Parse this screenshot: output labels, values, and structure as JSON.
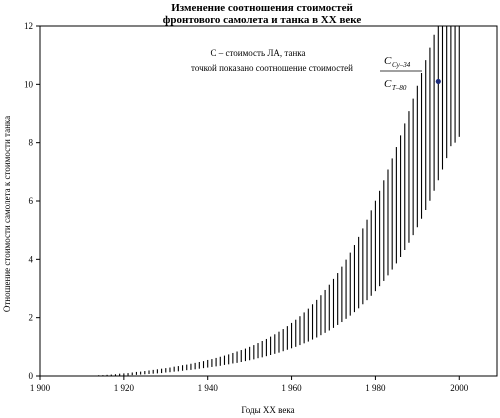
{
  "chart_data": {
    "type": "range-bar",
    "title_line1": "Изменение соотношения стоимостей",
    "title_line2": "фронтового самолета и танка в XX веке",
    "xlabel": "Годы XX века",
    "ylabel": "Отношение стоимости самолета к стоимости танка",
    "xlim": [
      1900,
      2009
    ],
    "ylim": [
      0,
      12
    ],
    "x_ticks": [
      "1 900",
      "1 920",
      "1 940",
      "1 960",
      "1 980",
      "2000"
    ],
    "x_tick_values": [
      1900,
      1920,
      1940,
      1960,
      1980,
      2000
    ],
    "y_ticks": [
      "0",
      "2",
      "4",
      "6",
      "8",
      "10",
      "12"
    ],
    "y_tick_values": [
      0,
      2,
      4,
      6,
      8,
      10,
      12
    ],
    "grid": false,
    "series": [
      {
        "band": {
          "x_start": 1914,
          "x_end": 2000,
          "step": 1,
          "upper_values": [
            0.02,
            0.03,
            0.04,
            0.05,
            0.06,
            0.08,
            0.09,
            0.1,
            0.12,
            0.14,
            0.15,
            0.17,
            0.19,
            0.21,
            0.23,
            0.25,
            0.27,
            0.29,
            0.32,
            0.34,
            0.37,
            0.39,
            0.42,
            0.45,
            0.48,
            0.51,
            0.55,
            0.58,
            0.62,
            0.66,
            0.7,
            0.74,
            0.79,
            0.84,
            0.89,
            0.94,
            1.0,
            1.06,
            1.13,
            1.2,
            1.27,
            1.35,
            1.43,
            1.52,
            1.61,
            1.71,
            1.82,
            1.93,
            2.05,
            2.18,
            2.31,
            2.46,
            2.61,
            2.77,
            2.95,
            3.13,
            3.33,
            3.53,
            3.75,
            3.99,
            4.23,
            4.49,
            4.77,
            5.06,
            5.36,
            5.68,
            6.01,
            6.35,
            6.71,
            7.08,
            7.46,
            7.85,
            8.25,
            8.66,
            9.08,
            9.51,
            9.95,
            10.39,
            10.83,
            11.26,
            11.7,
            12.0,
            12.0,
            12.0,
            12.0,
            12.0,
            12.0
          ],
          "lower_values": [
            0.0,
            0.0,
            0.0,
            0.0,
            0.0,
            0.01,
            0.01,
            0.02,
            0.03,
            0.04,
            0.05,
            0.06,
            0.07,
            0.08,
            0.09,
            0.1,
            0.12,
            0.13,
            0.15,
            0.16,
            0.18,
            0.2,
            0.21,
            0.23,
            0.25,
            0.27,
            0.29,
            0.31,
            0.33,
            0.35,
            0.38,
            0.4,
            0.43,
            0.45,
            0.48,
            0.51,
            0.54,
            0.57,
            0.61,
            0.64,
            0.68,
            0.72,
            0.76,
            0.8,
            0.85,
            0.9,
            0.95,
            1.0,
            1.06,
            1.12,
            1.18,
            1.25,
            1.32,
            1.4,
            1.48,
            1.56,
            1.65,
            1.75,
            1.85,
            1.96,
            2.07,
            2.19,
            2.32,
            2.46,
            2.6,
            2.75,
            2.91,
            3.08,
            3.26,
            3.45,
            3.65,
            3.86,
            4.08,
            4.32,
            4.57,
            4.83,
            5.1,
            5.39,
            5.69,
            6.01,
            6.35,
            6.71,
            7.08,
            7.47,
            7.88,
            8.0,
            8.2
          ]
        }
      }
    ],
    "points": [
      {
        "x": 1995,
        "y": 10.1,
        "color": "#1a2a7a"
      }
    ],
    "annotation": {
      "line1": "C – стоимость ЛА, танка",
      "line2": "точкой показано соотношение стоимостей",
      "frac_num": "C",
      "frac_num_sub": "Су–34",
      "frac_den": "C",
      "frac_den_sub": "Т–80"
    }
  }
}
